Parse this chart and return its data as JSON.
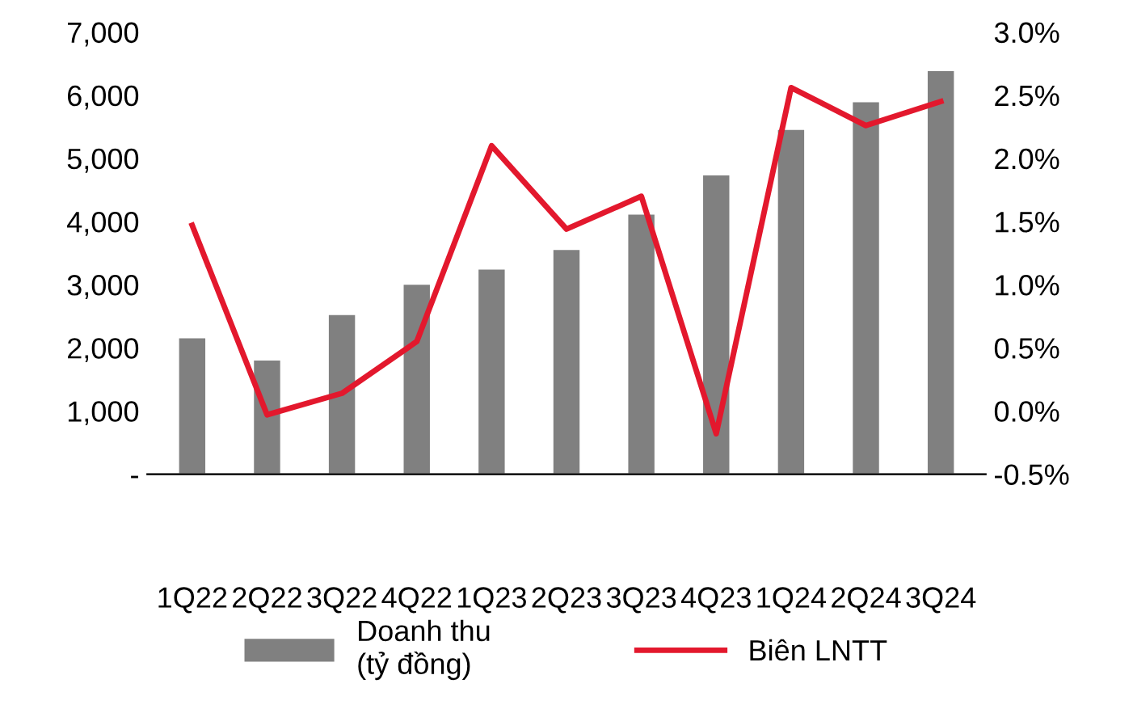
{
  "chart_data": {
    "type": "bar",
    "categories": [
      "1Q22",
      "2Q22",
      "3Q22",
      "4Q22",
      "1Q23",
      "2Q23",
      "3Q23",
      "4Q23",
      "1Q24",
      "2Q24",
      "3Q24"
    ],
    "series": [
      {
        "name": "Doanh thu\n(tỷ đồng)",
        "color": "#808080",
        "values": [
          2150,
          1800,
          2520,
          3000,
          3240,
          3550,
          4110,
          4730,
          5450,
          5890,
          6380
        ]
      },
      {
        "name": "Biên LNTT",
        "type": "line",
        "axis": "y2",
        "color": "#e3182d",
        "values": [
          1.47,
          -0.03,
          0.14,
          0.55,
          2.1,
          1.44,
          1.7,
          -0.18,
          2.56,
          2.26,
          2.45
        ]
      }
    ],
    "ylim": [
      0,
      7000
    ],
    "yticks": [
      {
        "value": 0,
        "label": "-"
      },
      {
        "value": 1000,
        "label": "1,000"
      },
      {
        "value": 2000,
        "label": "2,000"
      },
      {
        "value": 3000,
        "label": "3,000"
      },
      {
        "value": 4000,
        "label": "4,000"
      },
      {
        "value": 5000,
        "label": "5,000"
      },
      {
        "value": 6000,
        "label": "6,000"
      },
      {
        "value": 7000,
        "label": "7,000"
      }
    ],
    "y2lim": [
      -0.5,
      3.0
    ],
    "y2ticks": [
      {
        "value": -0.5,
        "label": "-0.5%"
      },
      {
        "value": 0,
        "label": "0.0%"
      },
      {
        "value": 0.5,
        "label": "0.5%"
      },
      {
        "value": 1.0,
        "label": "1.0%"
      },
      {
        "value": 1.5,
        "label": "1.5%"
      },
      {
        "value": 2.0,
        "label": "2.0%"
      },
      {
        "value": 2.5,
        "label": "2.5%"
      },
      {
        "value": 3.0,
        "label": "3.0%"
      }
    ],
    "grid": false,
    "legend": "bottom",
    "marker": "none",
    "line_style": "solid"
  }
}
